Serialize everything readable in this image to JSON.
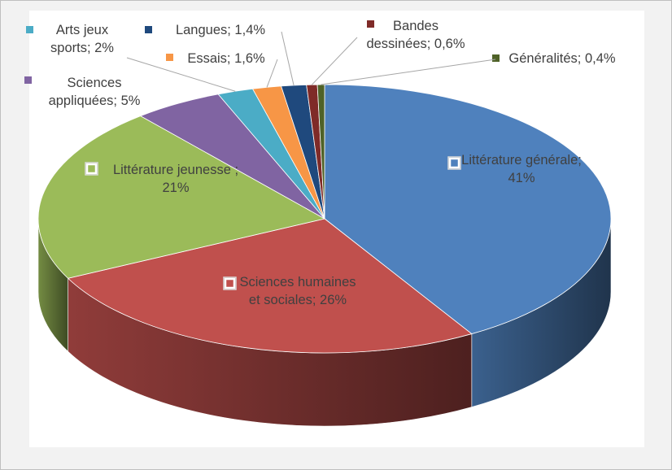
{
  "chart_data": {
    "type": "pie3d",
    "values": [
      41,
      26,
      21,
      5,
      2,
      1.6,
      1.4,
      0.6,
      0.4
    ],
    "value_labels": [
      "Littérature générale; 41%",
      "Sciences humaines et sociales; 26%",
      "Littérature jeunesse ; 21%",
      "Sciences appliquées; 5%",
      "Arts jeux sports; 2%",
      "Essais; 1,6%",
      "Langues; 1,4%",
      "Bandes dessinées; 0,6%",
      "Généralités; 0,4%"
    ],
    "colors": [
      "#4f81bd",
      "#c0504d",
      "#9bbb59",
      "#8064a2",
      "#4bacc6",
      "#f79646",
      "#1f497d",
      "#7f2b28",
      "#4f6228"
    ]
  }
}
